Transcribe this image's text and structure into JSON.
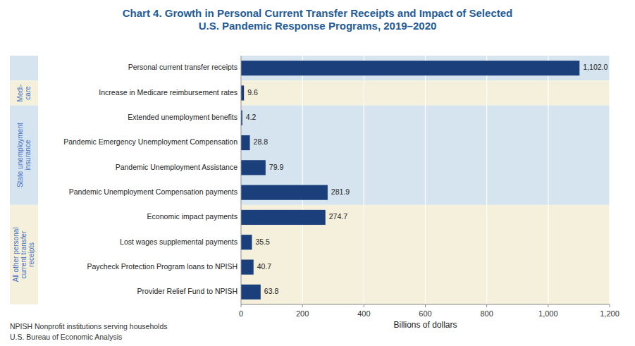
{
  "chart_data": {
    "type": "bar",
    "orientation": "horizontal",
    "title": "Chart 4. Growth in Personal Current Transfer Receipts and Impact of Selected\nU.S. Pandemic Response Programs, 2019–2020",
    "title_color": "#1F5C99",
    "categories": [
      "Personal current transfer receipts",
      "Increase in Medicare reimbursement rates",
      "Extended unemployment benefits",
      "Pandemic Emergency Unemployment Compensation",
      "Pandemic Unemployment Assistance",
      "Pandemic Unemployment Compensation payments",
      "Economic impact payments",
      "Lost wages supplemental payments",
      "Paycheck Protection Program loans to NPISH",
      "Provider Relief Fund to NPISH"
    ],
    "values": [
      1102.0,
      9.6,
      4.2,
      28.8,
      79.9,
      281.9,
      274.7,
      35.5,
      40.7,
      63.8
    ],
    "value_labels": [
      "1,102.0",
      "9.6",
      "4.2",
      "28.8",
      "79.9",
      "281.9",
      "274.7",
      "35.5",
      "40.7",
      "63.8"
    ],
    "data_labels": true,
    "color": "#1A3F7A",
    "category_sections": [
      0,
      1,
      2,
      2,
      2,
      2,
      3,
      3,
      3,
      3
    ],
    "sections": [
      {
        "color": "#D6E4F0"
      },
      {
        "name": "Medi-\ncare",
        "color": "#F5F0DC"
      },
      {
        "name": "State unemployment\ninsurance",
        "color": "#D6E4F0"
      },
      {
        "name": "All other personal\ncurrent transfer\nreceipts",
        "color": "#F5F0DC"
      }
    ],
    "section_label_color": "#4472C4",
    "xlabel": "Billions of dollars",
    "xlim": [
      0,
      1200
    ],
    "xticks": [
      0,
      200,
      400,
      600,
      800,
      {
        "value": 1000,
        "label": "1,000"
      },
      {
        "value": 1200,
        "label": "1,200"
      }
    ],
    "grid": true,
    "notes": [
      "NPISH Nonprofit institutions serving households",
      "U.S. Bureau of Economic Analysis"
    ]
  }
}
